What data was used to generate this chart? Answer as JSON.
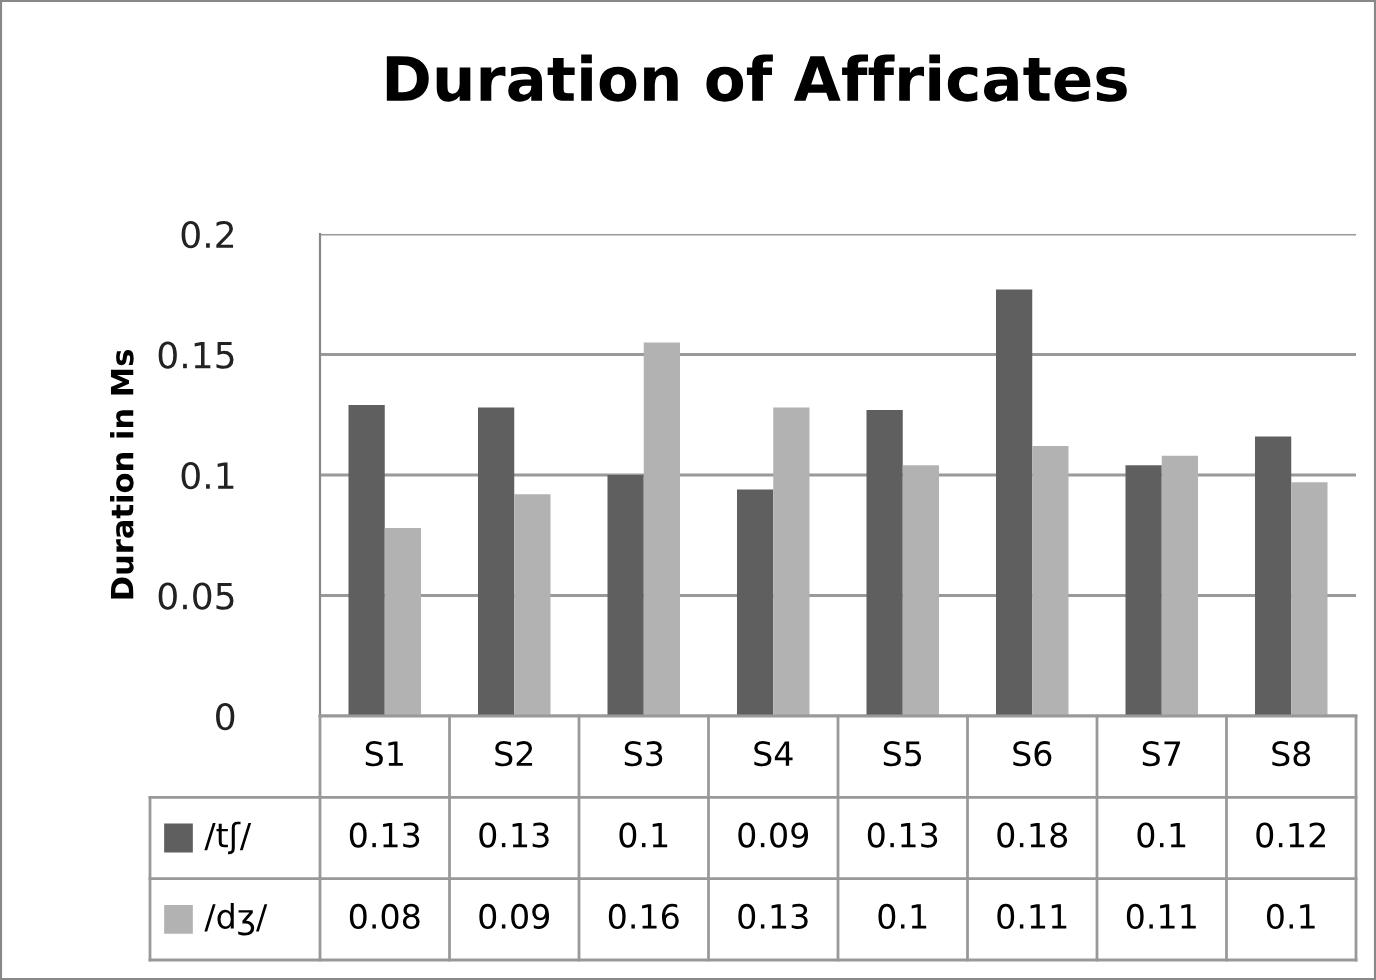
{
  "chart_data": {
    "type": "bar",
    "title": "Duration of Affricates",
    "ylabel": "Duration in Ms",
    "categories": [
      "S1",
      "S2",
      "S3",
      "S4",
      "S5",
      "S6",
      "S7",
      "S8"
    ],
    "series": [
      {
        "name": "/tʃ/",
        "color": "#5f5f5f",
        "values": [
          0.129,
          0.128,
          0.1,
          0.094,
          0.127,
          0.177,
          0.104,
          0.116
        ],
        "value_labels": [
          "0.13",
          "0.13",
          "0.1",
          "0.09",
          "0.13",
          "0.18",
          "0.1",
          "0.12"
        ]
      },
      {
        "name": "/dʒ/",
        "color": "#b2b2b2",
        "values": [
          0.078,
          0.092,
          0.155,
          0.128,
          0.104,
          0.112,
          0.108,
          0.097
        ],
        "value_labels": [
          "0.08",
          "0.09",
          "0.16",
          "0.13",
          "0.1",
          "0.11",
          "0.11",
          "0.1"
        ]
      }
    ],
    "ylim": [
      0,
      0.2
    ],
    "yticks": [
      0,
      0.05,
      0.1,
      0.15,
      0.2
    ],
    "grid": "y",
    "legend": "bottom"
  }
}
